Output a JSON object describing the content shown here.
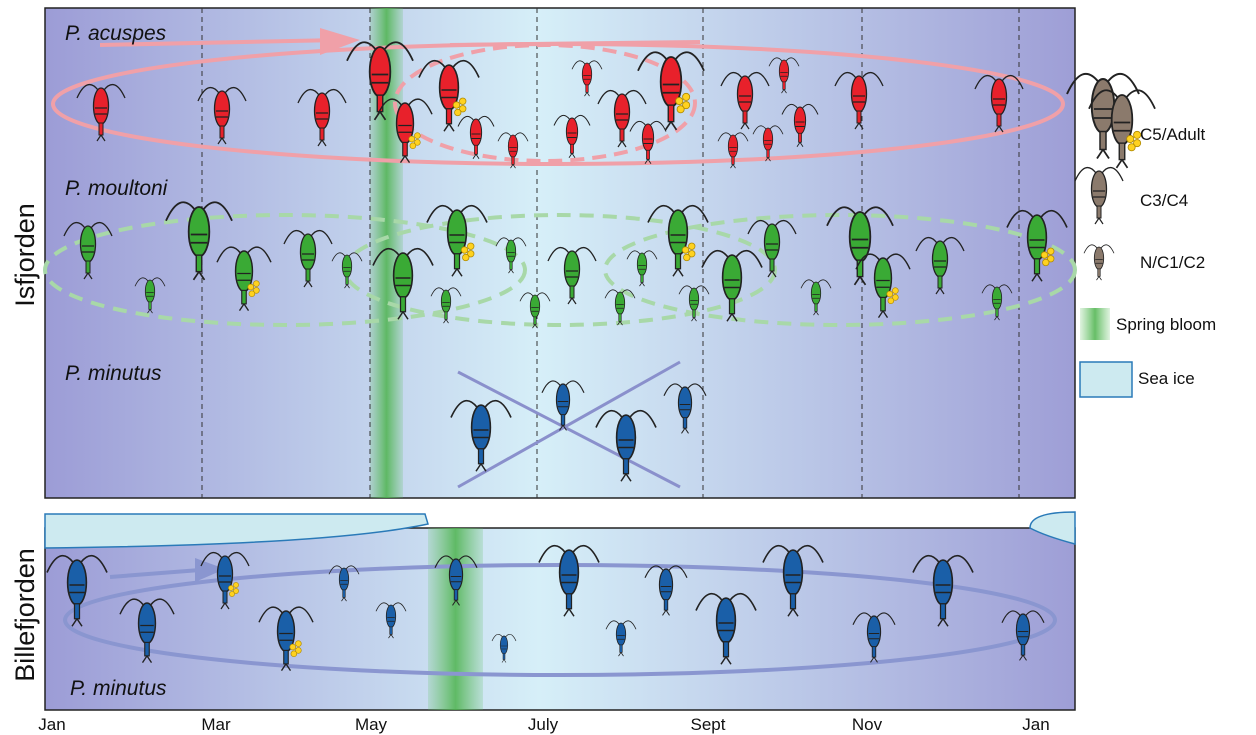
{
  "panels": {
    "isfjorden": {
      "label": "Isfjorden",
      "species": [
        "P. acuspes",
        "P. moultoni",
        "P. minutus"
      ]
    },
    "billefjorden": {
      "label": "Billefjorden",
      "species": "P. minutus"
    }
  },
  "months": [
    "Jan",
    "Mar",
    "May",
    "July",
    "Sept",
    "Nov",
    "Jan"
  ],
  "legend": [
    "C5/Adult",
    "C3/C4",
    "N/C1/C2",
    "Spring bloom",
    "Sea ice"
  ]
}
